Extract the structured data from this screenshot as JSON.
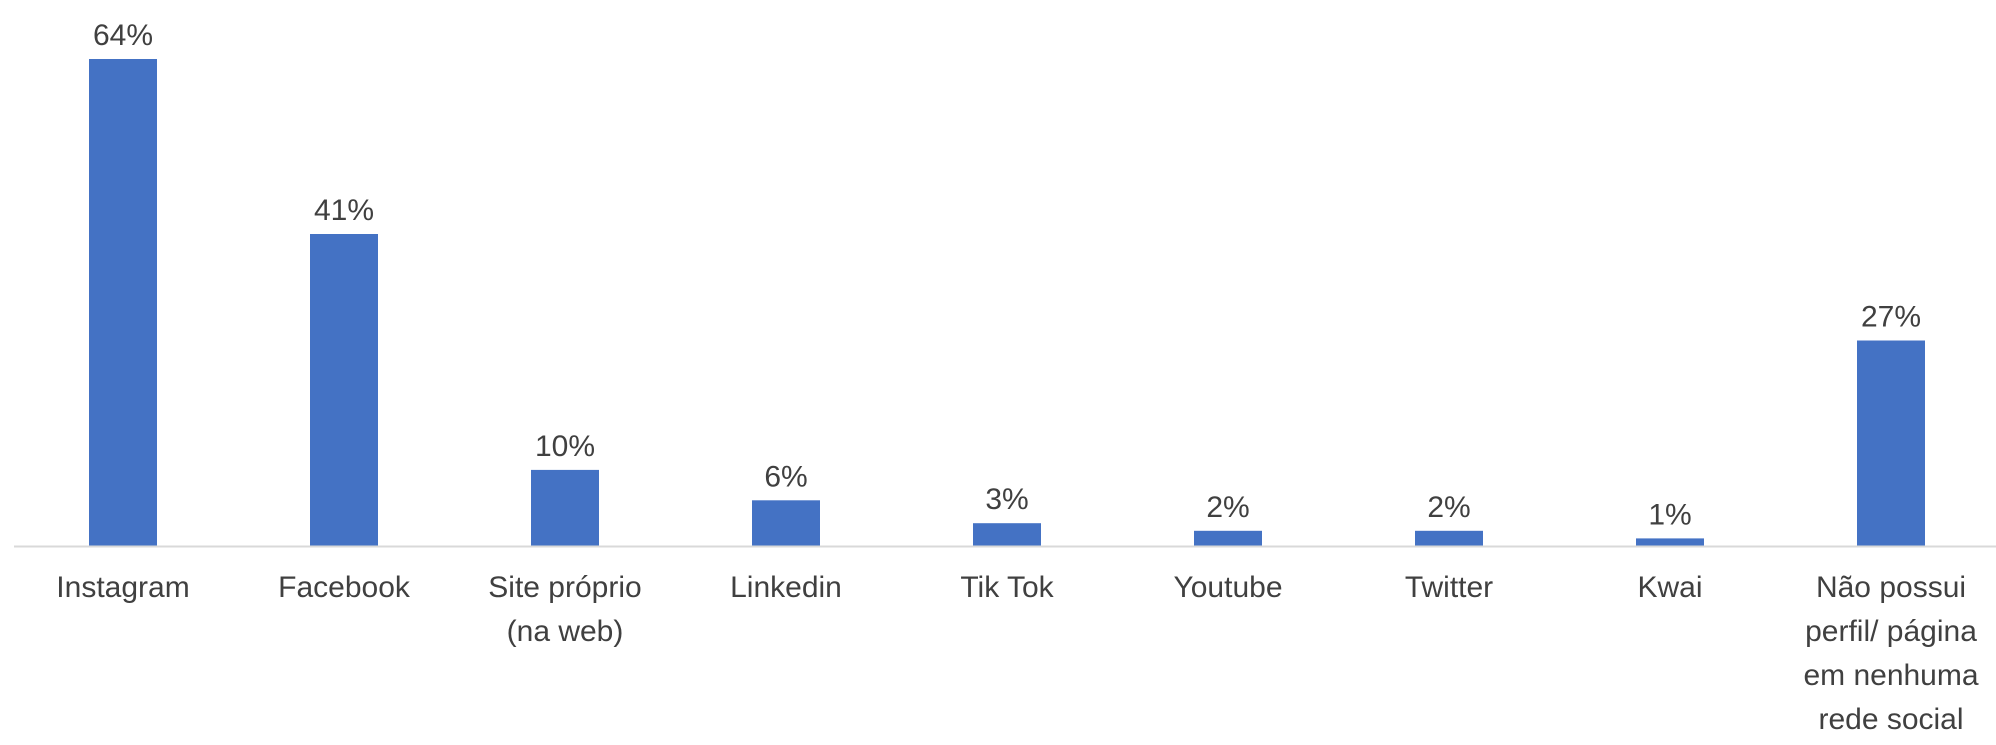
{
  "chart_data": {
    "type": "bar",
    "categories": [
      [
        "Instagram"
      ],
      [
        "Facebook"
      ],
      [
        "Site próprio",
        "(na web)"
      ],
      [
        "Linkedin"
      ],
      [
        "Tik Tok"
      ],
      [
        "Youtube"
      ],
      [
        "Twitter"
      ],
      [
        "Kwai"
      ],
      [
        "Não possui",
        "perfil/ página",
        "em nenhuma",
        "rede social"
      ]
    ],
    "values": [
      64,
      41,
      10,
      6,
      3,
      2,
      2,
      1,
      27
    ],
    "value_labels": [
      "64%",
      "41%",
      "10%",
      "6%",
      "3%",
      "2%",
      "2%",
      "1%",
      "27%"
    ],
    "unit": "%",
    "title": "",
    "xlabel": "",
    "ylabel": "",
    "ylim": [
      0,
      64
    ],
    "grid": false,
    "legend": "none",
    "bar_color": "#4472C4",
    "axis_color": "#D9D9D9",
    "text_color": "#404040"
  }
}
